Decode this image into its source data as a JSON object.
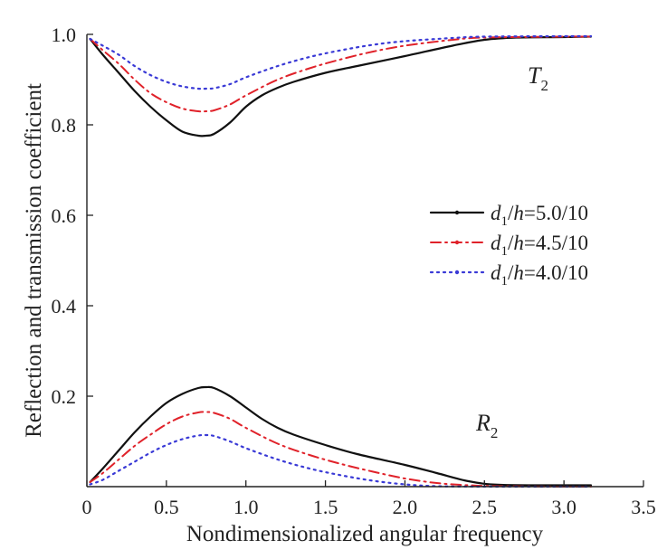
{
  "chart_data": {
    "type": "line",
    "title": "",
    "xlabel": "Nondimensionalized angular frequency",
    "ylabel": "Reflection and transmission coefficient",
    "xlim": [
      0,
      3.5
    ],
    "ylim": [
      0,
      1.0
    ],
    "xticks": [
      "0",
      "0.5",
      "1.0",
      "1.5",
      "2.0",
      "2.5",
      "3.0",
      "3.5"
    ],
    "yticks": [
      "0.2",
      "0.4",
      "0.6",
      "0.8",
      "1.0"
    ],
    "grid": false,
    "legend_position": "right",
    "annotations": {
      "T": {
        "base": "T",
        "sub": "2"
      },
      "R": {
        "base": "R",
        "sub": "2"
      }
    },
    "legend": [
      {
        "var": "d",
        "sub": "1",
        "rest": "/h=5.0/10",
        "color": "#111111",
        "style": "solid"
      },
      {
        "var": "d",
        "sub": "1",
        "rest": "/h=4.5/10",
        "color": "#e0222a",
        "style": "dashdot"
      },
      {
        "var": "d",
        "sub": "1",
        "rest": "/h=4.0/10",
        "color": "#3a3ad6",
        "style": "dotted"
      }
    ],
    "series": [
      {
        "legend_index": 0,
        "curve": "T",
        "points": [
          [
            0.02,
            0.99
          ],
          [
            0.1,
            0.955
          ],
          [
            0.2,
            0.915
          ],
          [
            0.3,
            0.875
          ],
          [
            0.4,
            0.84
          ],
          [
            0.5,
            0.81
          ],
          [
            0.6,
            0.785
          ],
          [
            0.7,
            0.776
          ],
          [
            0.75,
            0.776
          ],
          [
            0.8,
            0.78
          ],
          [
            0.9,
            0.805
          ],
          [
            1.0,
            0.84
          ],
          [
            1.1,
            0.865
          ],
          [
            1.2,
            0.882
          ],
          [
            1.3,
            0.895
          ],
          [
            1.5,
            0.915
          ],
          [
            1.7,
            0.93
          ],
          [
            2.0,
            0.952
          ],
          [
            2.3,
            0.975
          ],
          [
            2.5,
            0.988
          ],
          [
            2.7,
            0.993
          ],
          [
            3.0,
            0.994
          ],
          [
            3.17,
            0.995
          ]
        ]
      },
      {
        "legend_index": 1,
        "curve": "T",
        "points": [
          [
            0.02,
            0.99
          ],
          [
            0.1,
            0.965
          ],
          [
            0.2,
            0.935
          ],
          [
            0.3,
            0.9
          ],
          [
            0.4,
            0.87
          ],
          [
            0.5,
            0.85
          ],
          [
            0.6,
            0.836
          ],
          [
            0.7,
            0.83
          ],
          [
            0.75,
            0.83
          ],
          [
            0.8,
            0.832
          ],
          [
            0.9,
            0.845
          ],
          [
            1.0,
            0.865
          ],
          [
            1.2,
            0.9
          ],
          [
            1.4,
            0.925
          ],
          [
            1.6,
            0.945
          ],
          [
            1.8,
            0.962
          ],
          [
            2.0,
            0.975
          ],
          [
            2.3,
            0.988
          ],
          [
            2.5,
            0.993
          ],
          [
            3.0,
            0.995
          ],
          [
            3.17,
            0.995
          ]
        ]
      },
      {
        "legend_index": 2,
        "curve": "T",
        "points": [
          [
            0.02,
            0.99
          ],
          [
            0.1,
            0.975
          ],
          [
            0.2,
            0.955
          ],
          [
            0.3,
            0.93
          ],
          [
            0.4,
            0.91
          ],
          [
            0.5,
            0.895
          ],
          [
            0.6,
            0.885
          ],
          [
            0.7,
            0.88
          ],
          [
            0.75,
            0.88
          ],
          [
            0.8,
            0.881
          ],
          [
            0.9,
            0.89
          ],
          [
            1.0,
            0.905
          ],
          [
            1.2,
            0.93
          ],
          [
            1.4,
            0.95
          ],
          [
            1.6,
            0.965
          ],
          [
            1.8,
            0.977
          ],
          [
            2.0,
            0.985
          ],
          [
            2.3,
            0.992
          ],
          [
            2.5,
            0.995
          ],
          [
            3.0,
            0.996
          ],
          [
            3.17,
            0.996
          ]
        ]
      },
      {
        "legend_index": 0,
        "curve": "R",
        "points": [
          [
            0.02,
            0.01
          ],
          [
            0.1,
            0.04
          ],
          [
            0.2,
            0.08
          ],
          [
            0.3,
            0.12
          ],
          [
            0.4,
            0.155
          ],
          [
            0.5,
            0.185
          ],
          [
            0.6,
            0.205
          ],
          [
            0.7,
            0.218
          ],
          [
            0.75,
            0.22
          ],
          [
            0.8,
            0.218
          ],
          [
            0.9,
            0.2
          ],
          [
            1.0,
            0.175
          ],
          [
            1.1,
            0.15
          ],
          [
            1.2,
            0.13
          ],
          [
            1.3,
            0.115
          ],
          [
            1.5,
            0.092
          ],
          [
            1.7,
            0.072
          ],
          [
            2.0,
            0.048
          ],
          [
            2.2,
            0.03
          ],
          [
            2.4,
            0.012
          ],
          [
            2.6,
            0.004
          ],
          [
            3.0,
            0.003
          ],
          [
            3.17,
            0.003
          ]
        ]
      },
      {
        "legend_index": 1,
        "curve": "R",
        "points": [
          [
            0.02,
            0.01
          ],
          [
            0.1,
            0.03
          ],
          [
            0.2,
            0.06
          ],
          [
            0.3,
            0.09
          ],
          [
            0.4,
            0.115
          ],
          [
            0.5,
            0.138
          ],
          [
            0.6,
            0.155
          ],
          [
            0.7,
            0.164
          ],
          [
            0.75,
            0.165
          ],
          [
            0.8,
            0.163
          ],
          [
            0.9,
            0.15
          ],
          [
            1.0,
            0.13
          ],
          [
            1.2,
            0.095
          ],
          [
            1.4,
            0.07
          ],
          [
            1.6,
            0.05
          ],
          [
            1.8,
            0.033
          ],
          [
            2.0,
            0.018
          ],
          [
            2.2,
            0.008
          ],
          [
            2.4,
            0.003
          ],
          [
            2.6,
            0.001
          ],
          [
            3.0,
            0.0
          ],
          [
            3.17,
            0.0
          ]
        ]
      },
      {
        "legend_index": 2,
        "curve": "R",
        "points": [
          [
            0.02,
            0.005
          ],
          [
            0.1,
            0.015
          ],
          [
            0.2,
            0.035
          ],
          [
            0.3,
            0.055
          ],
          [
            0.4,
            0.075
          ],
          [
            0.5,
            0.092
          ],
          [
            0.6,
            0.105
          ],
          [
            0.7,
            0.113
          ],
          [
            0.75,
            0.114
          ],
          [
            0.8,
            0.112
          ],
          [
            0.9,
            0.1
          ],
          [
            1.0,
            0.085
          ],
          [
            1.2,
            0.06
          ],
          [
            1.4,
            0.04
          ],
          [
            1.6,
            0.025
          ],
          [
            1.8,
            0.013
          ],
          [
            2.0,
            0.005
          ],
          [
            2.2,
            0.001
          ],
          [
            2.5,
            0.0
          ],
          [
            3.0,
            0.0
          ],
          [
            3.17,
            0.0
          ]
        ]
      }
    ]
  }
}
